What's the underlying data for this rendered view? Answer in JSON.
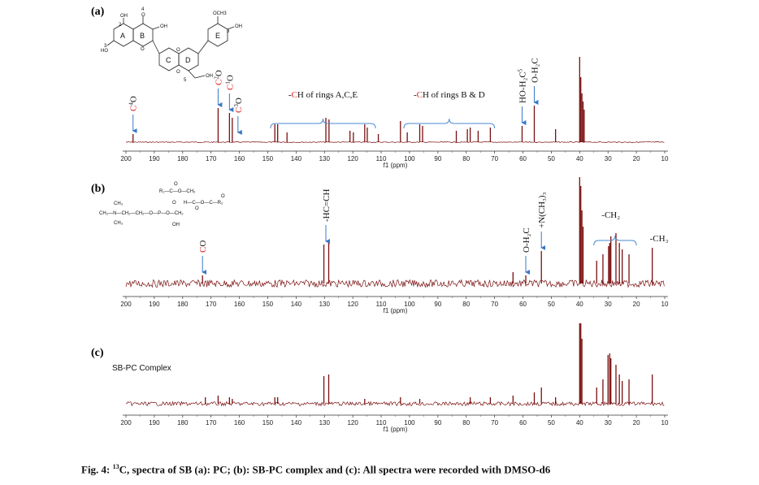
{
  "colors": {
    "spectrum": "#7a1010",
    "accent": "#e02020",
    "arrow": "#3a78c8",
    "bracket": "#4a8ad0"
  },
  "axis": {
    "ppm_max": 200,
    "ppm_min": 10,
    "ticks": [
      200,
      190,
      180,
      170,
      160,
      150,
      140,
      130,
      120,
      110,
      100,
      90,
      80,
      70,
      60,
      50,
      40,
      30,
      20,
      10
    ],
    "xlabel": "f1 (ppm)"
  },
  "panels": [
    {
      "id": "a",
      "label": "(a)",
      "structure_text": [
        "OH",
        "4",
        "O",
        "OH",
        "OCH3",
        "3",
        "OH",
        "2",
        "3",
        "HO",
        "O",
        "O",
        "O",
        "OH",
        "5"
      ],
      "rings": [
        "A",
        "B",
        "C",
        "D",
        "E"
      ],
      "peaks": [
        [
          197.5,
          10
        ],
        [
          167.5,
          42
        ],
        [
          163.5,
          36
        ],
        [
          162.5,
          30
        ],
        [
          147.5,
          22
        ],
        [
          146.5,
          22
        ],
        [
          143.2,
          12
        ],
        [
          129.5,
          30
        ],
        [
          128.4,
          28
        ],
        [
          121.0,
          14
        ],
        [
          119.8,
          12
        ],
        [
          115.8,
          22
        ],
        [
          114.9,
          18
        ],
        [
          111.0,
          10
        ],
        [
          103.2,
          26
        ],
        [
          100.8,
          12
        ],
        [
          96.4,
          22
        ],
        [
          95.4,
          20
        ],
        [
          83.5,
          14
        ],
        [
          79.6,
          16
        ],
        [
          78.6,
          18
        ],
        [
          75.8,
          14
        ],
        [
          71.5,
          18
        ],
        [
          60.3,
          20
        ],
        [
          56.0,
          45
        ],
        [
          48.5,
          16
        ],
        [
          40.0,
          110
        ],
        [
          39.6,
          80
        ],
        [
          39.2,
          60
        ],
        [
          38.8,
          50
        ],
        [
          38.4,
          40
        ]
      ],
      "annotations": [
        {
          "type": "vertical",
          "ppm": 197.5,
          "base": "C",
          "sup": "4",
          "post": "O"
        },
        {
          "type": "vertical",
          "ppm": 167.5,
          "base": "C",
          "sup": "2",
          "post": "O"
        },
        {
          "type": "vertical",
          "ppm": 163.5,
          "base": "C",
          "sup": "1",
          "post": "O"
        },
        {
          "type": "vertical",
          "ppm": 160.5,
          "base": "C",
          "sup": "3",
          "post": "O"
        },
        {
          "type": "vertical",
          "ppm": 60.3,
          "base": "HO-H₂C",
          "sup": "5",
          "post": ""
        },
        {
          "type": "vertical",
          "ppm": 56.0,
          "base": "O-H₂C",
          "sup": "",
          "post": ""
        }
      ],
      "brackets": [
        {
          "ppm_left": 149,
          "ppm_right": 112,
          "pre": "-",
          "red": "C",
          "post": "H of rings A,C,E"
        },
        {
          "ppm_left": 102,
          "ppm_right": 70,
          "pre": "-",
          "red": "C",
          "post": "H of rings B & D"
        }
      ]
    },
    {
      "id": "b",
      "label": "(b)",
      "structure_text": [
        "O",
        "R₁—C—O—CH₂",
        "O",
        "H—C—O—C—R₂",
        "O",
        "CH₃",
        "CH₃—N—CH₂—CH₂—O—P—O—CH₂",
        "CH₃",
        "OH",
        "O"
      ],
      "peaks": [
        [
          173.0,
          10
        ],
        [
          130.2,
          48
        ],
        [
          128.5,
          52
        ],
        [
          63.5,
          14
        ],
        [
          59.0,
          10
        ],
        [
          53.5,
          40
        ],
        [
          40.0,
          140
        ],
        [
          39.6,
          120
        ],
        [
          39.2,
          90
        ],
        [
          38.8,
          70
        ],
        [
          34.0,
          28
        ],
        [
          31.8,
          36
        ],
        [
          29.8,
          46
        ],
        [
          29.4,
          50
        ],
        [
          29.0,
          58
        ],
        [
          27.2,
          62
        ],
        [
          26.0,
          50
        ],
        [
          25.0,
          42
        ],
        [
          22.6,
          36
        ],
        [
          14.4,
          44
        ]
      ],
      "annotations": [
        {
          "type": "vertical",
          "ppm": 173.0,
          "base": "CO",
          "sup": "",
          "post": ""
        },
        {
          "type": "vertical",
          "ppm": 129.5,
          "base": "-HC=CH",
          "sup": "",
          "post": ""
        },
        {
          "type": "vertical",
          "ppm": 59.0,
          "base": "O-H₂C",
          "sup": "",
          "post": ""
        },
        {
          "type": "vertical",
          "ppm": 53.5,
          "base": "+N(CH₃)₃",
          "sup": "",
          "post": ""
        }
      ],
      "labels": [
        {
          "ppm": 29.0,
          "text": "-CH₂"
        },
        {
          "ppm": 12.0,
          "text": "-CH₃"
        }
      ],
      "brackets": [
        {
          "ppm_left": 35,
          "ppm_right": 20,
          "pre": "",
          "red": "",
          "post": ""
        }
      ]
    },
    {
      "id": "c",
      "label": "(c)",
      "title": "SB-PC Complex",
      "peaks": [
        [
          172.0,
          8
        ],
        [
          167.5,
          10
        ],
        [
          163.5,
          8
        ],
        [
          162.5,
          6
        ],
        [
          147.5,
          8
        ],
        [
          146.5,
          8
        ],
        [
          130.2,
          34
        ],
        [
          128.5,
          36
        ],
        [
          115.8,
          6
        ],
        [
          103.2,
          8
        ],
        [
          96.4,
          6
        ],
        [
          78.6,
          8
        ],
        [
          71.5,
          8
        ],
        [
          63.5,
          10
        ],
        [
          56.0,
          14
        ],
        [
          53.5,
          20
        ],
        [
          48.5,
          8
        ],
        [
          40.0,
          110
        ],
        [
          39.6,
          100
        ],
        [
          39.2,
          80
        ],
        [
          34.0,
          20
        ],
        [
          31.8,
          30
        ],
        [
          30.0,
          60
        ],
        [
          29.4,
          62
        ],
        [
          29.0,
          56
        ],
        [
          27.2,
          48
        ],
        [
          26.0,
          36
        ],
        [
          25.0,
          28
        ],
        [
          22.6,
          30
        ],
        [
          14.4,
          36
        ]
      ]
    }
  ],
  "caption": {
    "prefix": "Fig. 4: ",
    "sup": "13",
    "text": "C, spectra of SB (a): PC; (b): SB-PC complex and (c): All spectra were recorded with DMSO-d6"
  }
}
